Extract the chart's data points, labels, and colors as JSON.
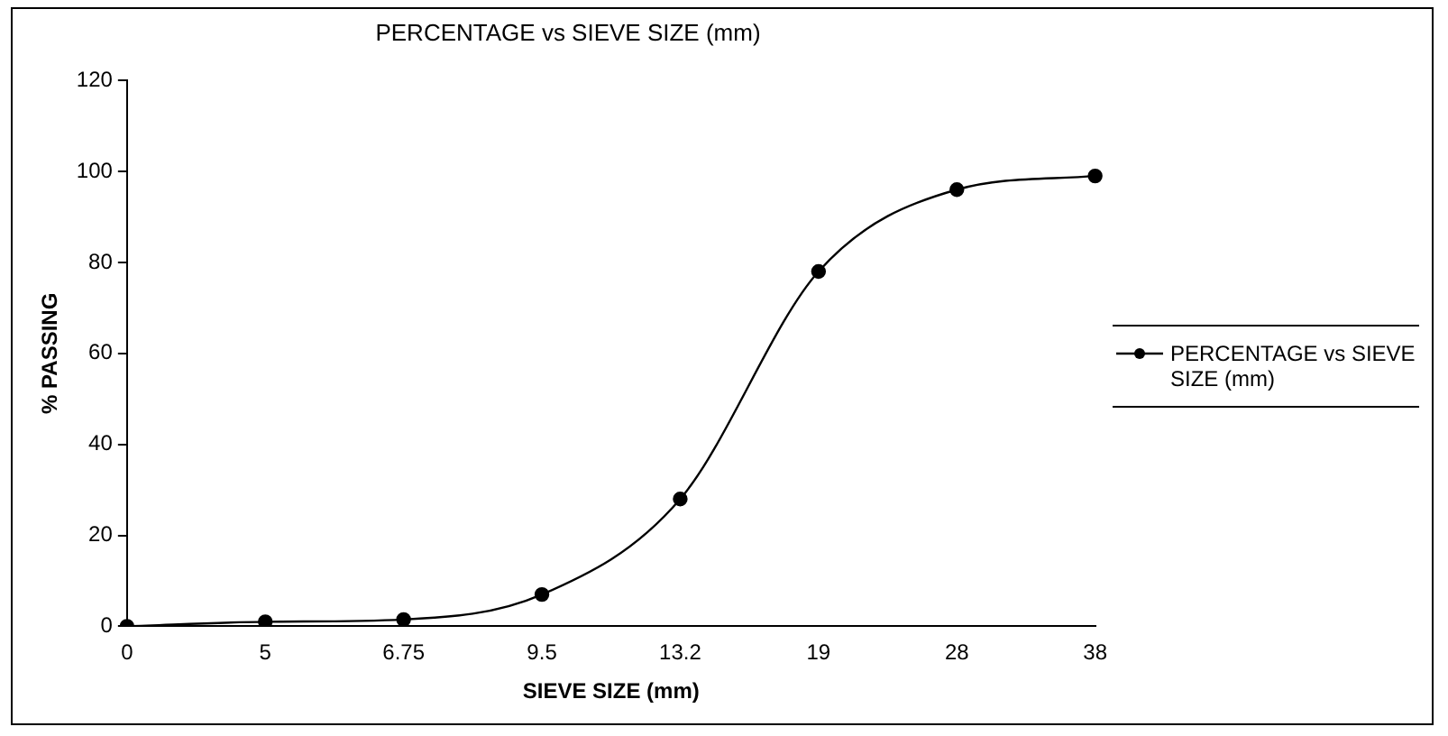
{
  "chart_data": {
    "type": "line",
    "title": "PERCENTAGE vs SIEVE SIZE (mm)",
    "xlabel": "SIEVE SIZE (mm)",
    "ylabel": "% PASSING",
    "categories": [
      "0",
      "5",
      "6.75",
      "9.5",
      "13.2",
      "19",
      "28",
      "38"
    ],
    "series": [
      {
        "name": "PERCENTAGE vs SIEVE SIZE (mm)",
        "color": "#000000",
        "values": [
          0,
          1,
          1.5,
          7,
          28,
          78,
          96,
          99
        ]
      }
    ],
    "ylim": [
      0,
      120
    ],
    "yticks": [
      0,
      20,
      40,
      60,
      80,
      100,
      120
    ],
    "grid": false,
    "legend": "right",
    "marker": "circle",
    "line_style": "solid"
  }
}
